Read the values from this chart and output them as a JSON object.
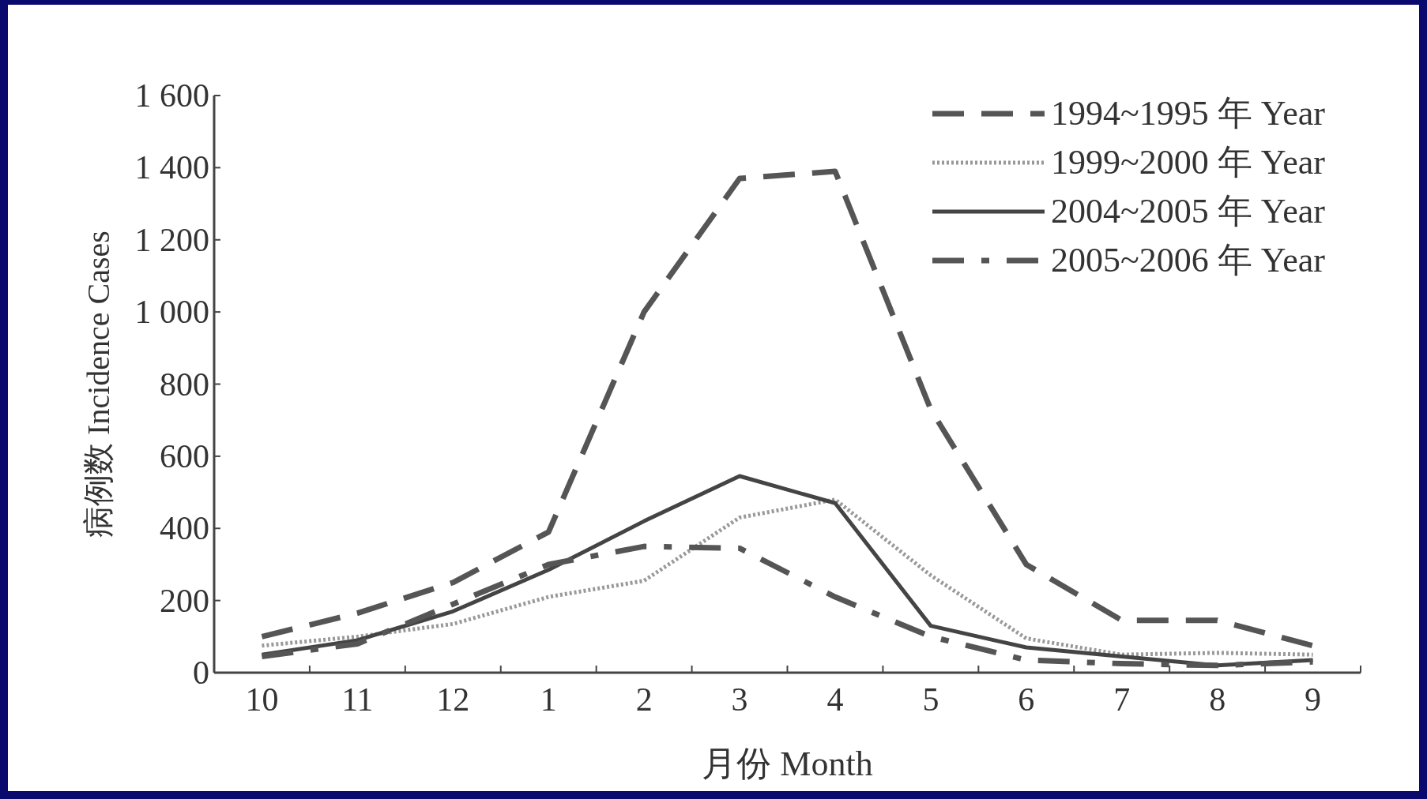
{
  "chart_data": {
    "type": "line",
    "xlabel": "月份 Month",
    "ylabel": "病例数 Incidence Cases",
    "categories": [
      "10",
      "11",
      "12",
      "1",
      "2",
      "3",
      "4",
      "5",
      "6",
      "7",
      "8",
      "9"
    ],
    "ylim": [
      0,
      1600
    ],
    "yticks": [
      0,
      {
        "value": 200,
        "label": "200"
      },
      {
        "value": 400,
        "label": "400"
      },
      {
        "value": 600,
        "label": "600"
      },
      {
        "value": 800,
        "label": "800"
      },
      {
        "value": 1000,
        "label": "1 000"
      },
      {
        "value": 1200,
        "label": "1 200"
      },
      {
        "value": 1400,
        "label": "1 400"
      },
      {
        "value": 1600,
        "label": "1 600"
      }
    ],
    "legend": "top right",
    "grid": false,
    "marker": "none",
    "series": [
      {
        "name": "1994~1995 年 Year",
        "color": "#555555",
        "line_style": "dashed",
        "values": [
          100,
          165,
          250,
          390,
          1000,
          1370,
          1390,
          730,
          300,
          145,
          145,
          75
        ]
      },
      {
        "name": "1999~2000 年 Year",
        "color": "#999999",
        "line_style": "dotted",
        "values": [
          75,
          100,
          135,
          210,
          255,
          430,
          480,
          270,
          95,
          50,
          55,
          50
        ]
      },
      {
        "name": "2004~2005 年 Year",
        "color": "#444444",
        "line_style": "solid",
        "values": [
          50,
          90,
          170,
          285,
          420,
          545,
          470,
          130,
          70,
          45,
          20,
          35
        ]
      },
      {
        "name": "2005~2006 年 Year",
        "color": "#555555",
        "line_style": "dashdot",
        "values": [
          45,
          80,
          190,
          300,
          350,
          345,
          210,
          100,
          35,
          25,
          20,
          30
        ]
      }
    ]
  }
}
